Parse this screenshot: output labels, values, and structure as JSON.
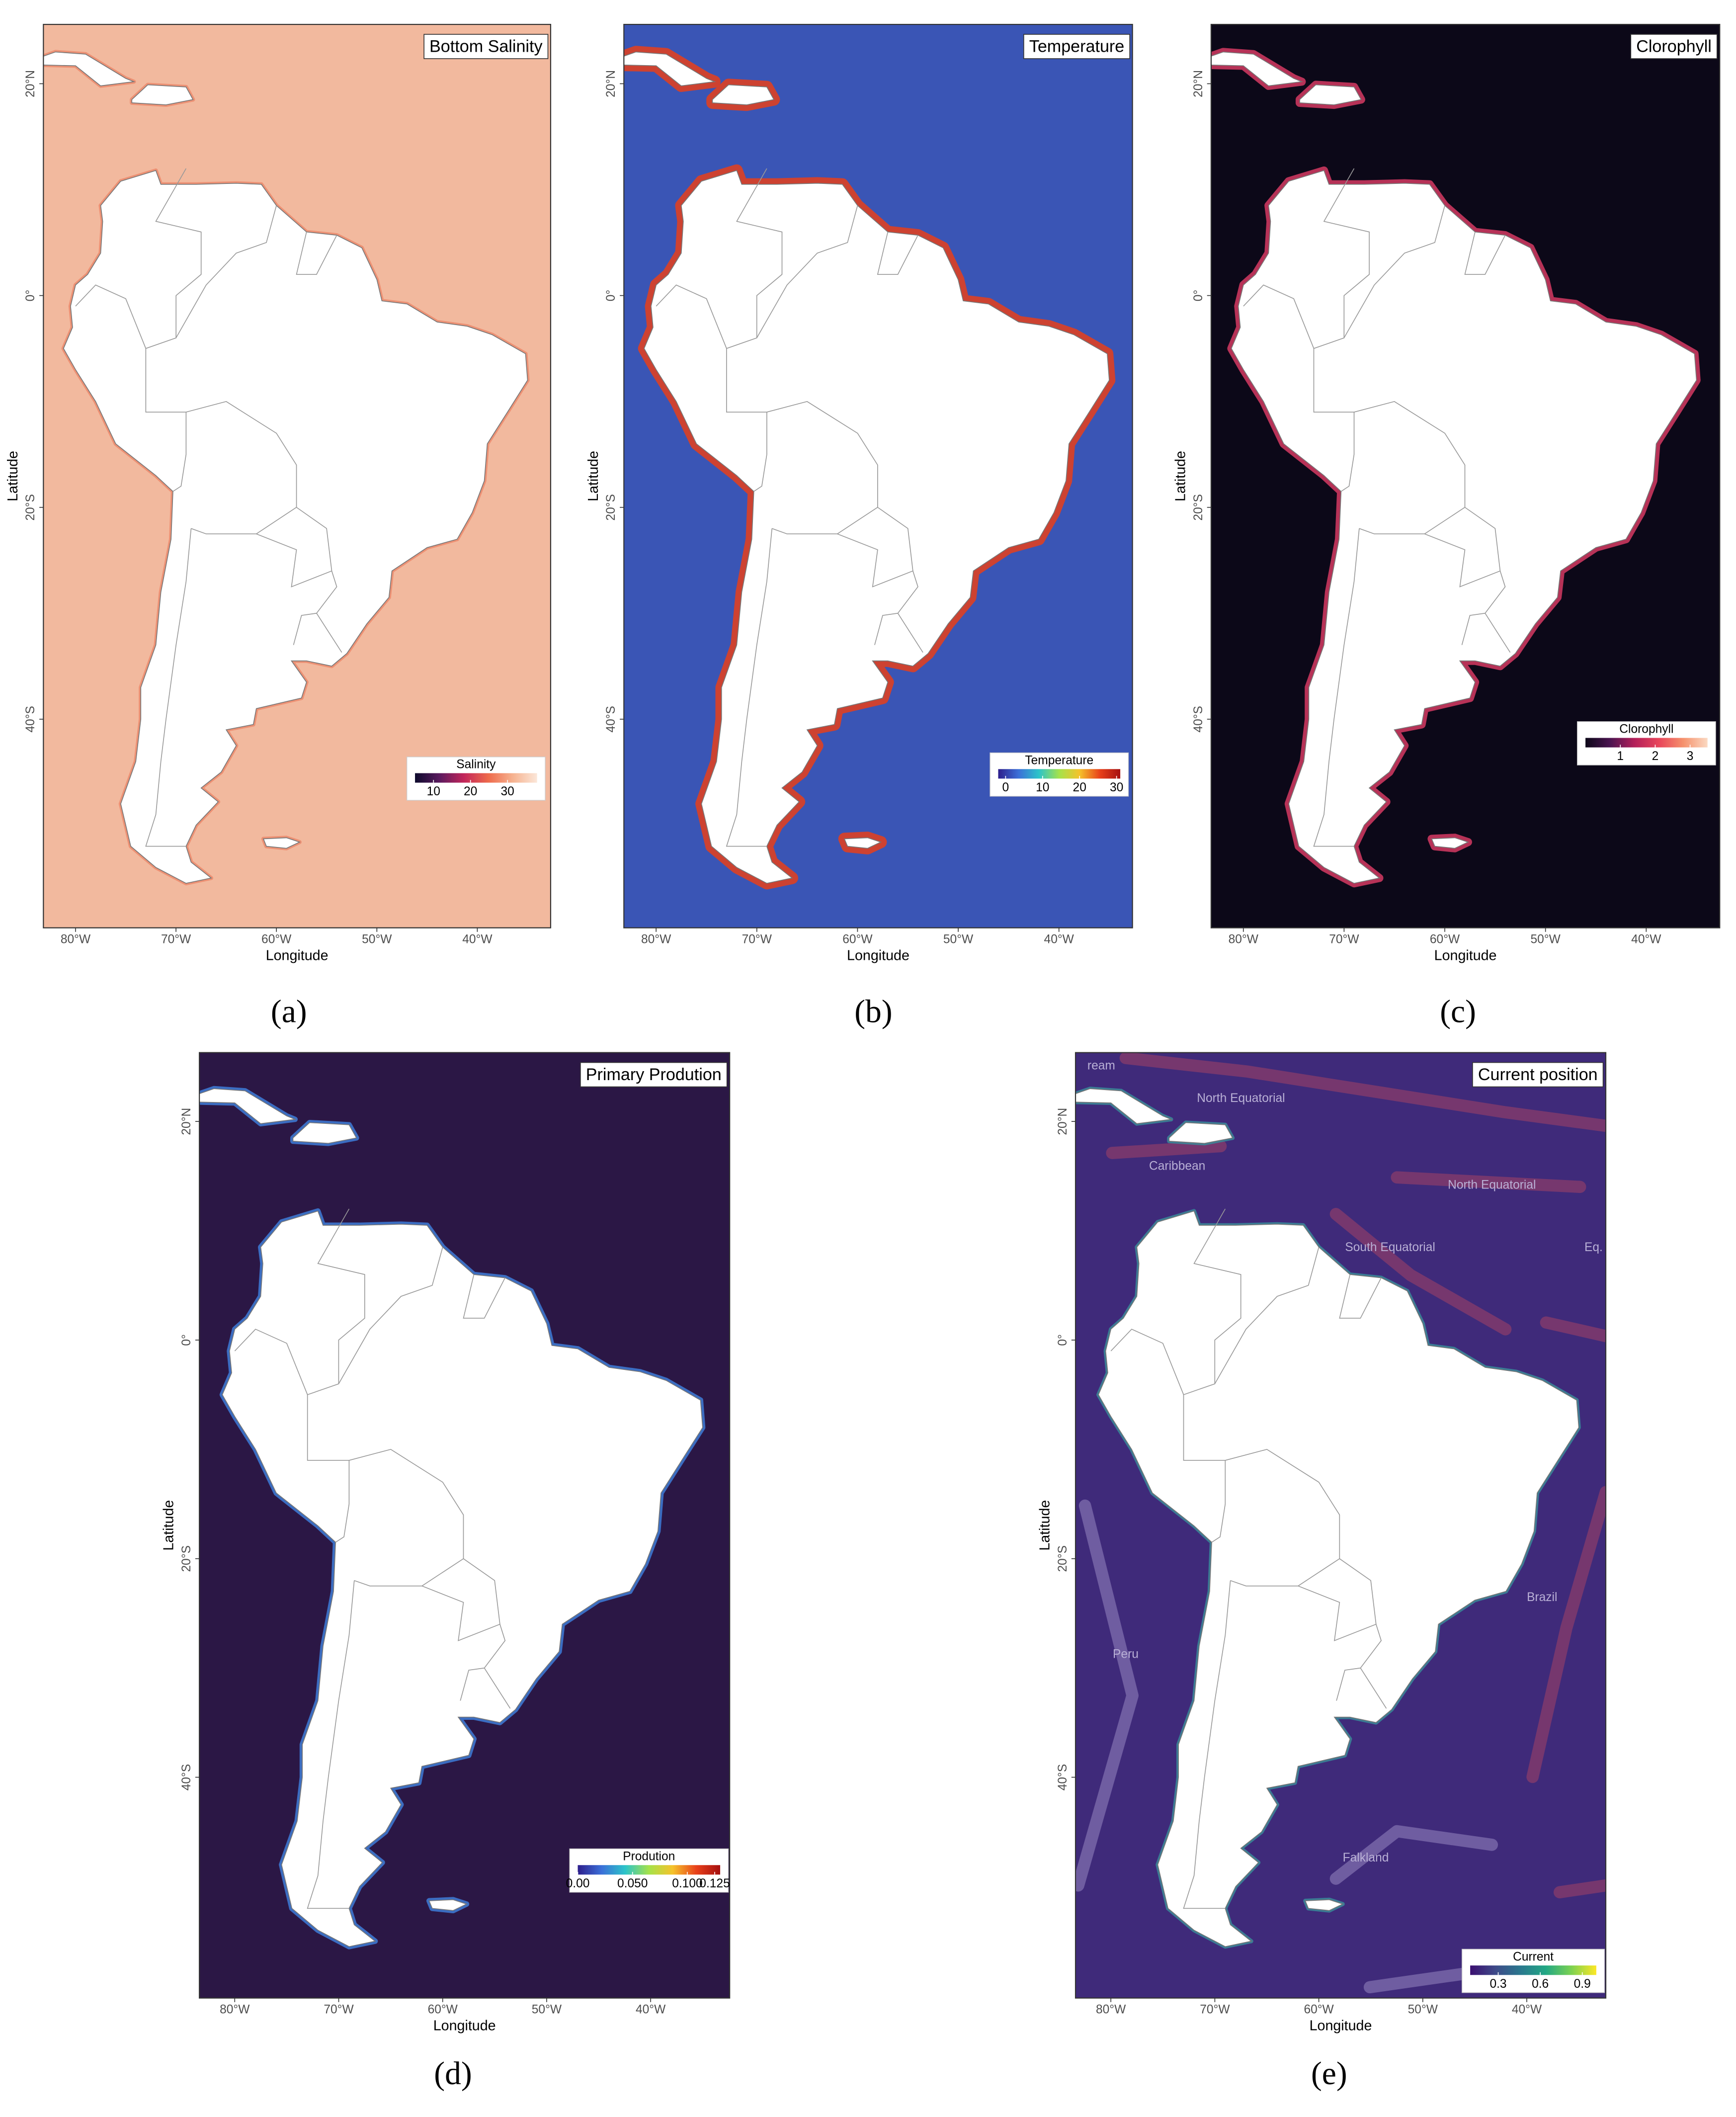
{
  "chart_data": [
    {
      "type": "map",
      "label": "(a)",
      "title": "Bottom Salinity",
      "x_label": "Longitude",
      "y_label": "Latitude",
      "background": "#f2b99e",
      "xlim": [
        -83.2,
        -32.7
      ],
      "ylim": [
        -59.7,
        25.6
      ],
      "xticks": [
        {
          "value": -80,
          "label": "80°W"
        },
        {
          "value": -70,
          "label": "70°W"
        },
        {
          "value": -60,
          "label": "60°W"
        },
        {
          "value": -50,
          "label": "50°W"
        },
        {
          "value": -40,
          "label": "40°W"
        }
      ],
      "yticks": [
        {
          "value": 20,
          "label": "20°N"
        },
        {
          "value": 0,
          "label": "0°"
        },
        {
          "value": -20,
          "label": "20°S"
        },
        {
          "value": -40,
          "label": "40°S"
        }
      ],
      "colorbar": {
        "title": "Salinity",
        "lim": [
          5,
          38
        ],
        "ticks": [
          10,
          20,
          30
        ],
        "colors": [
          "#0d0a2c",
          "#5a1a5e",
          "#c2255a",
          "#ee6a4b",
          "#f6b28f",
          "#fbe7d9"
        ]
      }
    },
    {
      "type": "map",
      "label": "(b)",
      "title": "Temperature",
      "x_label": "Longitude",
      "y_label": "Latitude",
      "background": "#3a55b5",
      "xlim": [
        -83.2,
        -32.7
      ],
      "ylim": [
        -59.7,
        25.6
      ],
      "xticks": [
        {
          "value": -80,
          "label": "80°W"
        },
        {
          "value": -70,
          "label": "70°W"
        },
        {
          "value": -60,
          "label": "60°W"
        },
        {
          "value": -50,
          "label": "50°W"
        },
        {
          "value": -40,
          "label": "40°W"
        }
      ],
      "yticks": [
        {
          "value": 20,
          "label": "20°N"
        },
        {
          "value": 0,
          "label": "0°"
        },
        {
          "value": -20,
          "label": "20°S"
        },
        {
          "value": -40,
          "label": "40°S"
        }
      ],
      "colorbar": {
        "title": "Temperature",
        "lim": [
          -2,
          31
        ],
        "ticks": [
          0,
          10,
          20,
          30
        ],
        "colors": [
          "#2d1e8c",
          "#3b6fd8",
          "#2cc4c9",
          "#a5e24a",
          "#f5c22b",
          "#e8401a",
          "#a50f0f"
        ]
      }
    },
    {
      "type": "map",
      "label": "(c)",
      "title": "Clorophyll",
      "x_label": "Longitude",
      "y_label": "Latitude",
      "background": "#0c0818",
      "xlim": [
        -83.2,
        -32.7
      ],
      "ylim": [
        -59.7,
        25.6
      ],
      "xticks": [
        {
          "value": -80,
          "label": "80°W"
        },
        {
          "value": -70,
          "label": "70°W"
        },
        {
          "value": -60,
          "label": "60°W"
        },
        {
          "value": -50,
          "label": "50°W"
        },
        {
          "value": -40,
          "label": "40°W"
        }
      ],
      "yticks": [
        {
          "value": 20,
          "label": "20°N"
        },
        {
          "value": 0,
          "label": "0°"
        },
        {
          "value": -20,
          "label": "20°S"
        },
        {
          "value": -40,
          "label": "40°S"
        }
      ],
      "colorbar": {
        "title": "Clorophyll",
        "lim": [
          0,
          3.5
        ],
        "ticks": [
          1,
          2,
          3
        ],
        "colors": [
          "#0c0818",
          "#4a1450",
          "#b3205a",
          "#e8445a",
          "#f5916c",
          "#fbd9c2"
        ]
      }
    },
    {
      "type": "map",
      "label": "(d)",
      "title": "Primary Prodution",
      "x_label": "Longitude",
      "y_label": "Latitude",
      "background": "#2b1745",
      "xlim": [
        -83.4,
        -32.4
      ],
      "ylim": [
        -60.2,
        26.3
      ],
      "xticks": [
        {
          "value": -80,
          "label": "80°W"
        },
        {
          "value": -70,
          "label": "70°W"
        },
        {
          "value": -60,
          "label": "60°W"
        },
        {
          "value": -50,
          "label": "50°W"
        },
        {
          "value": -40,
          "label": "40°W"
        }
      ],
      "yticks": [
        {
          "value": 20,
          "label": "20°N"
        },
        {
          "value": 0,
          "label": "0°"
        },
        {
          "value": -20,
          "label": "20°S"
        },
        {
          "value": -40,
          "label": "40°S"
        }
      ],
      "colorbar": {
        "title": "Prodution",
        "lim": [
          0,
          0.13
        ],
        "ticks": [
          {
            "value": 0,
            "label": "0.00"
          },
          {
            "value": 0.05,
            "label": "0.050"
          },
          {
            "value": 0.1,
            "label": "0.100"
          },
          {
            "value": 0.125,
            "label": "0.125"
          }
        ],
        "colors": [
          "#2d1e8c",
          "#3b6fd8",
          "#2cc4c9",
          "#a5e24a",
          "#f5c22b",
          "#e8401a",
          "#a50f0f"
        ]
      }
    },
    {
      "type": "map",
      "label": "(e)",
      "title": "Current position",
      "x_label": "Longitude",
      "y_label": "Latitude",
      "background": "#3f2a7a",
      "xlim": [
        -83.4,
        -32.4
      ],
      "ylim": [
        -60.2,
        26.3
      ],
      "xticks": [
        {
          "value": -80,
          "label": "80°W"
        },
        {
          "value": -70,
          "label": "70°W"
        },
        {
          "value": -60,
          "label": "60°W"
        },
        {
          "value": -50,
          "label": "50°W"
        },
        {
          "value": -40,
          "label": "40°W"
        }
      ],
      "yticks": [
        {
          "value": 20,
          "label": "20°N"
        },
        {
          "value": 0,
          "label": "0°"
        },
        {
          "value": -20,
          "label": "20°S"
        },
        {
          "value": -40,
          "label": "40°S"
        }
      ],
      "colorbar": {
        "title": "Current",
        "lim": [
          0.1,
          1.0
        ],
        "ticks": [
          0.3,
          0.6,
          0.9
        ],
        "colors": [
          "#3b0f70",
          "#3e4a89",
          "#2a788e",
          "#22a884",
          "#7ad151",
          "#fde725"
        ]
      },
      "annotations": [
        "ream",
        "North Equatorial",
        "Caribbean",
        "North Equatorial",
        "South Equatorial",
        "Eq.",
        "Brazil",
        "Peru",
        "Falkland"
      ]
    }
  ]
}
